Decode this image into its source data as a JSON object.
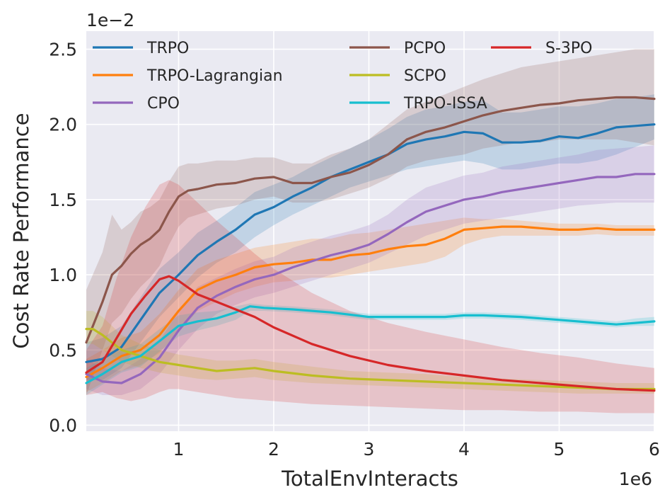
{
  "chart_data": {
    "type": "line",
    "title": "",
    "xlabel": "TotalEnvInteracts",
    "ylabel": "Cost Rate Performance",
    "x_offset_label": "1e6",
    "y_offset_label": "1e−2",
    "xlim": [
      0.03,
      6.0
    ],
    "ylim": [
      -0.04,
      2.62
    ],
    "xticks": [
      1,
      2,
      3,
      4,
      5,
      6
    ],
    "xtick_labels": [
      "1",
      "2",
      "3",
      "4",
      "5",
      "6"
    ],
    "yticks": [
      0.0,
      0.5,
      1.0,
      1.5,
      2.0,
      2.5
    ],
    "ytick_labels": [
      "0.0",
      "0.5",
      "1.0",
      "1.5",
      "2.0",
      "2.5"
    ],
    "grid": true,
    "legend_position": "top",
    "legend_ncol": 3,
    "series": [
      {
        "name": "TRPO",
        "color": "#1f77b4",
        "x": [
          0.03,
          0.2,
          0.4,
          0.6,
          0.8,
          1.0,
          1.2,
          1.4,
          1.6,
          1.8,
          2.0,
          2.2,
          2.4,
          2.6,
          2.8,
          3.0,
          3.2,
          3.4,
          3.6,
          3.8,
          4.0,
          4.2,
          4.4,
          4.6,
          4.8,
          5.0,
          5.2,
          5.4,
          5.6,
          5.8,
          6.0
        ],
        "y": [
          0.42,
          0.44,
          0.52,
          0.7,
          0.88,
          1.0,
          1.13,
          1.22,
          1.3,
          1.4,
          1.45,
          1.52,
          1.58,
          1.65,
          1.7,
          1.75,
          1.8,
          1.87,
          1.9,
          1.92,
          1.95,
          1.94,
          1.88,
          1.88,
          1.89,
          1.92,
          1.91,
          1.94,
          1.98,
          1.99,
          2.0
        ],
        "lower": [
          0.3,
          0.3,
          0.38,
          0.55,
          0.72,
          0.85,
          0.98,
          1.08,
          1.15,
          1.25,
          1.33,
          1.4,
          1.46,
          1.52,
          1.58,
          1.62,
          1.66,
          1.7,
          1.72,
          1.74,
          1.76,
          1.74,
          1.7,
          1.7,
          1.72,
          1.74,
          1.74,
          1.76,
          1.8,
          1.85,
          1.9
        ],
        "upper": [
          0.55,
          0.58,
          0.66,
          0.85,
          1.04,
          1.15,
          1.28,
          1.36,
          1.45,
          1.55,
          1.6,
          1.65,
          1.72,
          1.78,
          1.84,
          1.9,
          1.97,
          2.05,
          2.1,
          2.12,
          2.15,
          2.16,
          2.08,
          2.08,
          2.1,
          2.12,
          2.12,
          2.14,
          2.17,
          2.18,
          2.2
        ]
      },
      {
        "name": "TRPO-Lagrangian",
        "color": "#ff7f0e",
        "x": [
          0.03,
          0.2,
          0.4,
          0.6,
          0.8,
          1.0,
          1.2,
          1.4,
          1.6,
          1.8,
          2.0,
          2.2,
          2.4,
          2.6,
          2.8,
          3.0,
          3.2,
          3.4,
          3.6,
          3.8,
          4.0,
          4.2,
          4.4,
          4.6,
          4.8,
          5.0,
          5.2,
          5.4,
          5.6,
          5.8,
          6.0
        ],
        "y": [
          0.32,
          0.38,
          0.46,
          0.5,
          0.6,
          0.76,
          0.9,
          0.96,
          1.0,
          1.05,
          1.07,
          1.08,
          1.1,
          1.1,
          1.13,
          1.14,
          1.17,
          1.19,
          1.2,
          1.24,
          1.3,
          1.31,
          1.32,
          1.32,
          1.31,
          1.3,
          1.3,
          1.31,
          1.3,
          1.3,
          1.3
        ],
        "lower": [
          0.22,
          0.28,
          0.36,
          0.4,
          0.48,
          0.62,
          0.76,
          0.82,
          0.88,
          0.92,
          0.95,
          0.96,
          0.98,
          0.98,
          1.0,
          1.02,
          1.04,
          1.06,
          1.08,
          1.12,
          1.2,
          1.24,
          1.26,
          1.26,
          1.26,
          1.26,
          1.26,
          1.27,
          1.26,
          1.26,
          1.26
        ],
        "upper": [
          0.44,
          0.5,
          0.58,
          0.62,
          0.74,
          0.9,
          1.04,
          1.1,
          1.14,
          1.18,
          1.2,
          1.22,
          1.24,
          1.24,
          1.27,
          1.28,
          1.3,
          1.32,
          1.34,
          1.36,
          1.38,
          1.37,
          1.37,
          1.36,
          1.35,
          1.34,
          1.34,
          1.34,
          1.33,
          1.33,
          1.33
        ]
      },
      {
        "name": "CPO",
        "color": "#9467bd",
        "x": [
          0.03,
          0.2,
          0.4,
          0.6,
          0.8,
          1.0,
          1.2,
          1.4,
          1.6,
          1.8,
          2.0,
          2.2,
          2.4,
          2.6,
          2.8,
          3.0,
          3.2,
          3.4,
          3.6,
          3.8,
          4.0,
          4.2,
          4.4,
          4.6,
          4.8,
          5.0,
          5.2,
          5.4,
          5.6,
          5.8,
          6.0
        ],
        "y": [
          0.34,
          0.29,
          0.28,
          0.34,
          0.45,
          0.63,
          0.78,
          0.86,
          0.92,
          0.97,
          1.0,
          1.05,
          1.09,
          1.13,
          1.16,
          1.2,
          1.27,
          1.35,
          1.42,
          1.46,
          1.5,
          1.52,
          1.55,
          1.57,
          1.59,
          1.61,
          1.63,
          1.65,
          1.65,
          1.67,
          1.67
        ],
        "lower": [
          0.24,
          0.2,
          0.2,
          0.24,
          0.34,
          0.5,
          0.64,
          0.74,
          0.8,
          0.85,
          0.88,
          0.92,
          0.96,
          1.0,
          1.04,
          1.08,
          1.14,
          1.2,
          1.26,
          1.3,
          1.34,
          1.36,
          1.38,
          1.4,
          1.42,
          1.44,
          1.46,
          1.47,
          1.48,
          1.48,
          1.48
        ],
        "upper": [
          0.44,
          0.38,
          0.36,
          0.44,
          0.56,
          0.76,
          0.92,
          0.98,
          1.04,
          1.09,
          1.12,
          1.18,
          1.22,
          1.26,
          1.29,
          1.33,
          1.4,
          1.5,
          1.58,
          1.62,
          1.66,
          1.68,
          1.72,
          1.74,
          1.76,
          1.78,
          1.8,
          1.83,
          1.84,
          1.85,
          1.86
        ]
      },
      {
        "name": "PCPO",
        "color": "#8c564b",
        "x": [
          0.03,
          0.2,
          0.3,
          0.4,
          0.5,
          0.6,
          0.7,
          0.8,
          0.9,
          1.0,
          1.1,
          1.2,
          1.4,
          1.6,
          1.8,
          2.0,
          2.2,
          2.4,
          2.6,
          2.8,
          3.0,
          3.2,
          3.4,
          3.6,
          3.8,
          4.0,
          4.2,
          4.4,
          4.6,
          4.8,
          5.0,
          5.2,
          5.4,
          5.6,
          5.8,
          6.0
        ],
        "y": [
          0.55,
          0.82,
          1.0,
          1.06,
          1.14,
          1.2,
          1.24,
          1.3,
          1.42,
          1.52,
          1.56,
          1.57,
          1.6,
          1.61,
          1.64,
          1.65,
          1.61,
          1.61,
          1.65,
          1.68,
          1.73,
          1.8,
          1.9,
          1.95,
          1.98,
          2.02,
          2.06,
          2.09,
          2.11,
          2.13,
          2.14,
          2.16,
          2.17,
          2.18,
          2.18,
          2.17
        ],
        "lower": [
          0.2,
          0.5,
          0.68,
          0.74,
          0.84,
          0.92,
          0.98,
          1.06,
          1.2,
          1.32,
          1.38,
          1.4,
          1.44,
          1.46,
          1.5,
          1.52,
          1.48,
          1.48,
          1.5,
          1.54,
          1.58,
          1.64,
          1.72,
          1.76,
          1.78,
          1.8,
          1.84,
          1.86,
          1.88,
          1.88,
          1.9,
          1.9,
          1.9,
          1.9,
          1.88,
          1.86
        ],
        "upper": [
          0.9,
          1.15,
          1.4,
          1.3,
          1.35,
          1.42,
          1.45,
          1.5,
          1.62,
          1.72,
          1.74,
          1.74,
          1.76,
          1.76,
          1.78,
          1.78,
          1.74,
          1.74,
          1.8,
          1.84,
          1.9,
          2.0,
          2.1,
          2.15,
          2.2,
          2.25,
          2.3,
          2.34,
          2.38,
          2.4,
          2.42,
          2.44,
          2.46,
          2.48,
          2.5,
          2.5
        ]
      },
      {
        "name": "SCPO",
        "color": "#bcbd22",
        "x": [
          0.03,
          0.1,
          0.2,
          0.3,
          0.4,
          0.6,
          0.8,
          1.0,
          1.2,
          1.4,
          1.6,
          1.8,
          2.0,
          2.4,
          2.8,
          3.2,
          3.6,
          4.0,
          4.4,
          4.8,
          5.2,
          5.6,
          6.0
        ],
        "y": [
          0.64,
          0.64,
          0.6,
          0.55,
          0.5,
          0.46,
          0.42,
          0.4,
          0.38,
          0.36,
          0.37,
          0.38,
          0.36,
          0.33,
          0.31,
          0.3,
          0.29,
          0.28,
          0.27,
          0.26,
          0.25,
          0.24,
          0.24
        ],
        "lower": [
          0.54,
          0.54,
          0.5,
          0.46,
          0.42,
          0.38,
          0.35,
          0.33,
          0.31,
          0.3,
          0.31,
          0.32,
          0.3,
          0.28,
          0.27,
          0.26,
          0.25,
          0.24,
          0.23,
          0.22,
          0.21,
          0.21,
          0.21
        ],
        "upper": [
          0.76,
          0.76,
          0.72,
          0.66,
          0.6,
          0.54,
          0.5,
          0.47,
          0.45,
          0.43,
          0.43,
          0.44,
          0.42,
          0.39,
          0.36,
          0.35,
          0.34,
          0.32,
          0.31,
          0.3,
          0.29,
          0.28,
          0.28
        ]
      },
      {
        "name": "TRPO-ISSA",
        "color": "#17becf",
        "x": [
          0.03,
          0.2,
          0.4,
          0.6,
          0.8,
          1.0,
          1.2,
          1.4,
          1.6,
          1.75,
          1.9,
          2.2,
          2.6,
          3.0,
          3.4,
          3.8,
          4.0,
          4.2,
          4.6,
          5.0,
          5.4,
          5.6,
          5.8,
          6.0
        ],
        "y": [
          0.28,
          0.34,
          0.42,
          0.46,
          0.56,
          0.66,
          0.69,
          0.71,
          0.75,
          0.79,
          0.78,
          0.77,
          0.75,
          0.72,
          0.72,
          0.72,
          0.73,
          0.73,
          0.72,
          0.7,
          0.68,
          0.67,
          0.68,
          0.69
        ],
        "lower": [
          0.2,
          0.27,
          0.35,
          0.39,
          0.49,
          0.59,
          0.63,
          0.66,
          0.7,
          0.76,
          0.76,
          0.75,
          0.73,
          0.7,
          0.7,
          0.7,
          0.71,
          0.71,
          0.7,
          0.68,
          0.66,
          0.65,
          0.66,
          0.66
        ],
        "upper": [
          0.38,
          0.44,
          0.5,
          0.54,
          0.64,
          0.73,
          0.75,
          0.76,
          0.79,
          0.81,
          0.8,
          0.79,
          0.77,
          0.74,
          0.74,
          0.74,
          0.75,
          0.75,
          0.74,
          0.72,
          0.7,
          0.69,
          0.71,
          0.72
        ]
      },
      {
        "name": "S-3PO",
        "color": "#d62728",
        "x": [
          0.03,
          0.2,
          0.35,
          0.5,
          0.65,
          0.8,
          0.9,
          1.0,
          1.2,
          1.4,
          1.6,
          1.8,
          2.0,
          2.4,
          2.8,
          3.2,
          3.6,
          4.0,
          4.4,
          4.8,
          5.2,
          5.6,
          6.0
        ],
        "y": [
          0.35,
          0.42,
          0.58,
          0.74,
          0.86,
          0.97,
          0.99,
          0.96,
          0.87,
          0.82,
          0.77,
          0.72,
          0.65,
          0.54,
          0.46,
          0.4,
          0.36,
          0.33,
          0.3,
          0.28,
          0.26,
          0.24,
          0.23
        ],
        "lower": [
          0.2,
          0.22,
          0.18,
          0.16,
          0.18,
          0.22,
          0.24,
          0.24,
          0.22,
          0.2,
          0.18,
          0.17,
          0.16,
          0.14,
          0.13,
          0.12,
          0.11,
          0.1,
          0.1,
          0.09,
          0.09,
          0.08,
          0.08
        ],
        "upper": [
          0.5,
          0.66,
          0.98,
          1.25,
          1.45,
          1.6,
          1.63,
          1.6,
          1.48,
          1.36,
          1.25,
          1.14,
          1.04,
          0.88,
          0.76,
          0.68,
          0.62,
          0.57,
          0.52,
          0.48,
          0.45,
          0.41,
          0.38
        ]
      }
    ]
  }
}
